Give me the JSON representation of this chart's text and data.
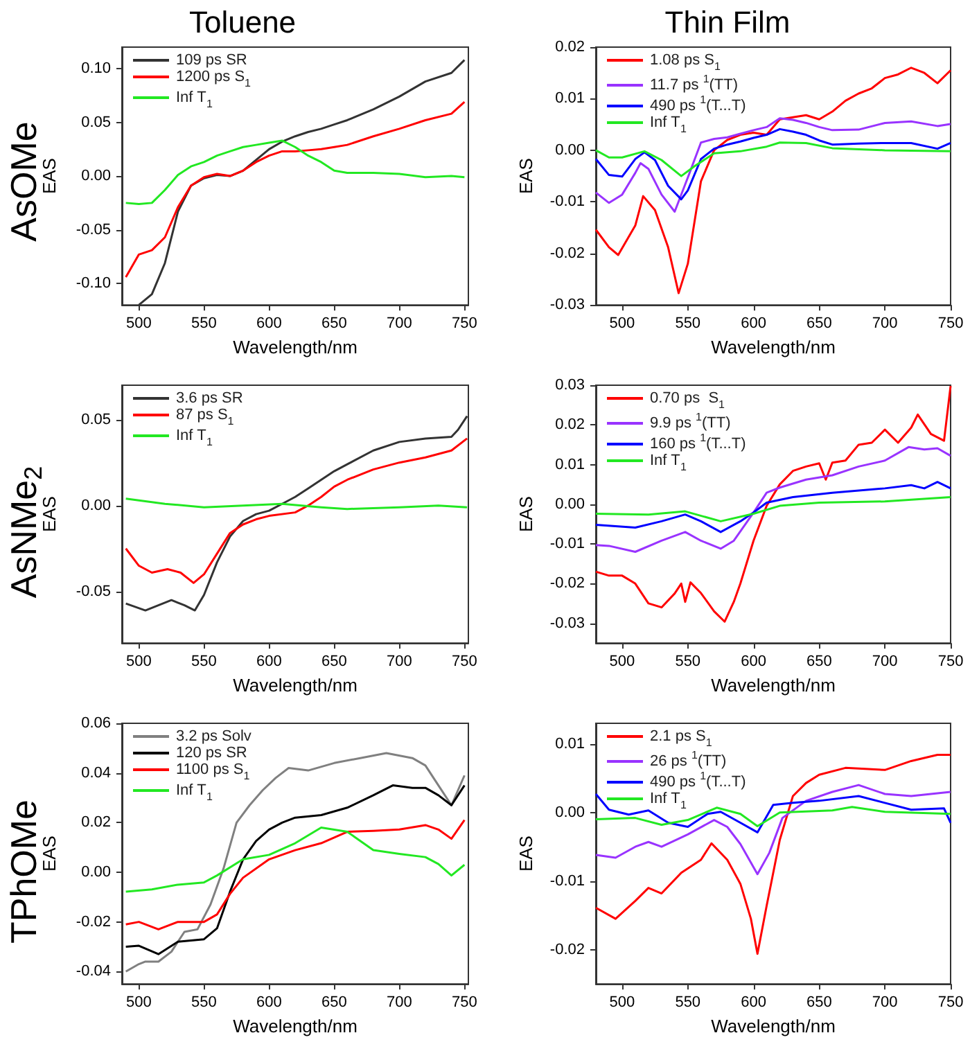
{
  "chart_data": [
    {
      "type": "line",
      "title": "Toluene",
      "annotations": [
        "AsOMe"
      ],
      "xlabel": "Wavelength/nm",
      "ylabel": "EAS",
      "xlim": [
        487,
        753
      ],
      "xticks": [
        500,
        550,
        600,
        650,
        700,
        750
      ],
      "ylim": [
        -0.12,
        0.12
      ],
      "yticks": [
        {
          "value": -0.1,
          "label": "-0.10"
        },
        {
          "value": -0.05,
          "label": "-0.05"
        },
        {
          "value": 0,
          "label": "0.00"
        },
        {
          "value": 0.05,
          "label": "0.05"
        },
        {
          "value": 0.1,
          "label": "0.10"
        }
      ],
      "legend": "top left",
      "grid": false,
      "marker": "none",
      "series": [
        {
          "name": "109 ps SR",
          "color": "#333333",
          "x": [
            500,
            510,
            520,
            530,
            540,
            550,
            560,
            570,
            580,
            590,
            600,
            610,
            620,
            630,
            640,
            650,
            660,
            680,
            700,
            720,
            740,
            750
          ],
          "values": [
            -0.12,
            -0.11,
            -0.081,
            -0.033,
            -0.009,
            -0.002,
            0.001,
            0,
            0.005,
            0.015,
            0.025,
            0.032,
            0.037,
            0.041,
            0.044,
            0.048,
            0.052,
            0.062,
            0.074,
            0.088,
            0.096,
            0.108
          ]
        },
        {
          "name": "1200 ps S$_{1}$",
          "color": "#ff0000",
          "x": [
            490,
            500,
            510,
            520,
            530,
            540,
            550,
            560,
            570,
            580,
            590,
            600,
            610,
            620,
            630,
            640,
            650,
            660,
            680,
            700,
            720,
            740,
            750
          ],
          "values": [
            -0.094,
            -0.073,
            -0.069,
            -0.057,
            -0.029,
            -0.009,
            -0.001,
            0.002,
            0,
            0.005,
            0.013,
            0.019,
            0.023,
            0.023,
            0.024,
            0.025,
            0.027,
            0.029,
            0.037,
            0.044,
            0.052,
            0.058,
            0.069
          ]
        },
        {
          "name": "Inf T$_{1}$",
          "color": "#22e822",
          "x": [
            490,
            500,
            510,
            520,
            530,
            540,
            550,
            560,
            570,
            580,
            590,
            600,
            610,
            620,
            630,
            640,
            650,
            660,
            680,
            700,
            720,
            740,
            750
          ],
          "values": [
            -0.025,
            -0.026,
            -0.025,
            -0.013,
            0.001,
            0.009,
            0.013,
            0.019,
            0.023,
            0.027,
            0.029,
            0.031,
            0.033,
            0.027,
            0.019,
            0.013,
            0.005,
            0.003,
            0.003,
            0.002,
            -0.001,
            0,
            -0.001
          ]
        }
      ]
    },
    {
      "type": "line",
      "title": "Thin Film",
      "xlabel": "Wavelength/nm",
      "ylabel": "EAS",
      "xlim": [
        480,
        750
      ],
      "xticks": [
        500,
        550,
        600,
        650,
        700,
        750
      ],
      "ylim": [
        -0.03,
        0.02
      ],
      "yticks": [
        {
          "value": -0.03,
          "label": "-0.03"
        },
        {
          "value": -0.02,
          "label": "-0.02"
        },
        {
          "value": -0.01,
          "label": "-0.01"
        },
        {
          "value": 0,
          "label": "0.00"
        },
        {
          "value": 0.01,
          "label": "0.01"
        },
        {
          "value": 0.02,
          "label": "0.02"
        }
      ],
      "legend": "top left",
      "grid": false,
      "marker": "none",
      "series": [
        {
          "name": "1.08 ps S$_{1}$",
          "color": "#ff0000",
          "x": [
            480,
            490,
            497,
            510,
            516,
            525,
            535,
            543,
            550,
            560,
            570,
            580,
            590,
            600,
            610,
            620,
            630,
            640,
            650,
            660,
            670,
            680,
            690,
            700,
            710,
            720,
            730,
            740,
            750
          ],
          "values": [
            -0.0154,
            -0.0188,
            -0.0203,
            -0.0146,
            -0.0089,
            -0.0116,
            -0.0188,
            -0.0277,
            -0.022,
            -0.006,
            0,
            0.002,
            0.003,
            0.0034,
            0.003,
            0.006,
            0.0064,
            0.0068,
            0.006,
            0.0075,
            0.0096,
            0.011,
            0.012,
            0.014,
            0.0147,
            0.016,
            0.015,
            0.013,
            0.0155
          ]
        },
        {
          "name": "11.7 ps $^{1}$(TT)",
          "color": "#9933ff",
          "x": [
            480,
            490,
            500,
            510,
            514,
            520,
            530,
            540,
            550,
            560,
            570,
            580,
            590,
            600,
            610,
            620,
            630,
            640,
            650,
            660,
            680,
            700,
            720,
            740,
            750
          ],
          "values": [
            -0.0082,
            -0.0102,
            -0.0086,
            -0.0044,
            -0.0025,
            -0.0036,
            -0.0086,
            -0.0119,
            -0.0053,
            0.0015,
            0.0022,
            0.0025,
            0.0032,
            0.0039,
            0.0045,
            0.0062,
            0.0059,
            0.0053,
            0.0045,
            0.0039,
            0.004,
            0.0053,
            0.0056,
            0.0047,
            0.0051
          ]
        },
        {
          "name": "490 ps $^{1}$(T...T)",
          "color": "#0000ff",
          "x": [
            480,
            490,
            500,
            510,
            517,
            525,
            535,
            545,
            550,
            560,
            570,
            580,
            590,
            600,
            610,
            620,
            630,
            640,
            650,
            660,
            680,
            700,
            720,
            740,
            750
          ],
          "values": [
            -0.0017,
            -0.0048,
            -0.0051,
            -0.0017,
            -0.0004,
            -0.0019,
            -0.0069,
            -0.0095,
            -0.0078,
            -0.0017,
            0.0003,
            0.0011,
            0.0017,
            0.0024,
            0.003,
            0.0041,
            0.0036,
            0.003,
            0.0019,
            0.0011,
            0.0013,
            0.0014,
            0.0014,
            0.0003,
            0.0014
          ]
        },
        {
          "name": "Inf T$_{1}$",
          "color": "#22e822",
          "x": [
            480,
            490,
            500,
            517,
            530,
            545,
            555,
            570,
            590,
            610,
            620,
            640,
            660,
            700,
            750
          ],
          "values": [
            0,
            -0.0014,
            -0.0014,
            -0.0002,
            -0.0019,
            -0.005,
            -0.0031,
            -0.0006,
            -0.0002,
            0.0007,
            0.0015,
            0.0014,
            0.0004,
            0,
            -0.0002
          ]
        }
      ]
    },
    {
      "type": "line",
      "annotations": [
        "AsNMe$_{2}$"
      ],
      "xlabel": "Wavelength/nm",
      "ylabel": "EAS",
      "xlim": [
        487,
        753
      ],
      "xticks": [
        500,
        550,
        600,
        650,
        700,
        750
      ],
      "ylim": [
        -0.08,
        0.07
      ],
      "yticks": [
        {
          "value": -0.05,
          "label": "-0.05"
        },
        {
          "value": 0,
          "label": "0.00"
        },
        {
          "value": 0.05,
          "label": "0.05"
        }
      ],
      "legend": "top left",
      "grid": false,
      "marker": "none",
      "series": [
        {
          "name": "3.6 ps SR",
          "color": "#333333",
          "x": [
            490,
            505,
            515,
            525,
            535,
            543,
            550,
            560,
            570,
            580,
            590,
            600,
            610,
            620,
            630,
            640,
            650,
            660,
            680,
            700,
            720,
            740,
            745,
            752
          ],
          "values": [
            -0.057,
            -0.061,
            -0.058,
            -0.055,
            -0.058,
            -0.061,
            -0.052,
            -0.033,
            -0.018,
            -0.009,
            -0.005,
            -0.003,
            0.001,
            0.005,
            0.01,
            0.015,
            0.02,
            0.024,
            0.032,
            0.037,
            0.039,
            0.04,
            0.044,
            0.052
          ]
        },
        {
          "name": "87 ps S$_{1}$",
          "color": "#ff0000",
          "x": [
            490,
            500,
            510,
            522,
            532,
            542,
            550,
            560,
            570,
            580,
            590,
            600,
            620,
            630,
            640,
            650,
            660,
            680,
            700,
            720,
            740,
            752
          ],
          "values": [
            -0.025,
            -0.035,
            -0.039,
            -0.037,
            -0.039,
            -0.045,
            -0.04,
            -0.028,
            -0.016,
            -0.011,
            -0.008,
            -0.006,
            -0.004,
            0,
            0.005,
            0.011,
            0.015,
            0.021,
            0.025,
            0.028,
            0.032,
            0.039
          ]
        },
        {
          "name": "Inf T$_{1}$",
          "color": "#22e822",
          "x": [
            490,
            500,
            520,
            550,
            580,
            610,
            640,
            660,
            700,
            730,
            752
          ],
          "values": [
            0.004,
            0.003,
            0.001,
            -0.001,
            0,
            0.001,
            -0.001,
            -0.002,
            -0.001,
            0,
            -0.001
          ]
        }
      ]
    },
    {
      "type": "line",
      "xlabel": "Wavelength/nm",
      "ylabel": "EAS",
      "xlim": [
        480,
        750
      ],
      "xticks": [
        500,
        550,
        600,
        650,
        700,
        750
      ],
      "ylim": [
        -0.035,
        0.03
      ],
      "yticks": [
        {
          "value": -0.03,
          "label": "-0.03"
        },
        {
          "value": -0.02,
          "label": "-0.02"
        },
        {
          "value": -0.01,
          "label": "-0.01"
        },
        {
          "value": 0,
          "label": "0.00"
        },
        {
          "value": 0.01,
          "label": "0.01"
        },
        {
          "value": 0.02,
          "label": "0.02"
        },
        {
          "value": 0.03,
          "label": "0.03"
        }
      ],
      "legend": "top left",
      "grid": false,
      "marker": "none",
      "series": [
        {
          "name": "0.70 ps  S$_{1}$",
          "color": "#ff0000",
          "x": [
            480,
            490,
            500,
            510,
            520,
            530,
            540,
            545,
            548,
            552,
            560,
            570,
            578,
            585,
            590,
            600,
            610,
            620,
            630,
            640,
            650,
            655,
            660,
            670,
            680,
            690,
            700,
            710,
            720,
            725,
            735,
            745,
            750
          ],
          "values": [
            -0.017,
            -0.018,
            -0.018,
            -0.02,
            -0.025,
            -0.026,
            -0.0225,
            -0.02,
            -0.0246,
            -0.0197,
            -0.0224,
            -0.027,
            -0.0296,
            -0.0246,
            -0.02,
            -0.0092,
            -0.0004,
            0.005,
            0.0084,
            0.0095,
            0.0103,
            0.0062,
            0.0105,
            0.011,
            0.015,
            0.0155,
            0.0188,
            0.0155,
            0.0193,
            0.0226,
            0.0177,
            0.016,
            0.0298
          ]
        },
        {
          "name": "9.9 ps $^{1}$(TT)",
          "color": "#9933ff",
          "x": [
            480,
            490,
            510,
            530,
            548,
            560,
            575,
            585,
            600,
            610,
            620,
            640,
            660,
            680,
            700,
            718,
            730,
            740,
            750
          ],
          "values": [
            -0.0103,
            -0.0105,
            -0.012,
            -0.0092,
            -0.007,
            -0.0092,
            -0.0112,
            -0.0092,
            -0.0021,
            0.0029,
            0.0042,
            0.0062,
            0.0073,
            0.0095,
            0.011,
            0.0144,
            0.0138,
            0.0141,
            0.0122
          ]
        },
        {
          "name": "160 ps $^{1}$(T...T)",
          "color": "#0000ff",
          "x": [
            480,
            510,
            530,
            548,
            560,
            575,
            590,
            600,
            610,
            630,
            660,
            700,
            720,
            730,
            740,
            750
          ],
          "values": [
            -0.0052,
            -0.0059,
            -0.0043,
            -0.0026,
            -0.0043,
            -0.007,
            -0.0043,
            -0.0021,
            0.0004,
            0.0018,
            0.0029,
            0.004,
            0.0048,
            0.004,
            0.0056,
            0.004
          ]
        },
        {
          "name": "Inf T$_{1}$",
          "color": "#22e822",
          "x": [
            480,
            520,
            548,
            575,
            600,
            620,
            650,
            700,
            750
          ],
          "values": [
            -0.0024,
            -0.0026,
            -0.0018,
            -0.0043,
            -0.0024,
            -0.0004,
            0.0004,
            0.0007,
            0.0018
          ]
        }
      ]
    },
    {
      "type": "line",
      "annotations": [
        "TPhOMe"
      ],
      "xlabel": "Wavelength/nm",
      "ylabel": "EAS",
      "xlim": [
        487,
        753
      ],
      "xticks": [
        500,
        550,
        600,
        650,
        700,
        750
      ],
      "ylim": [
        -0.045,
        0.06
      ],
      "yticks": [
        {
          "value": -0.04,
          "label": "-0.04"
        },
        {
          "value": -0.02,
          "label": "-0.02"
        },
        {
          "value": 0,
          "label": "0.00"
        },
        {
          "value": 0.02,
          "label": "0.02"
        },
        {
          "value": 0.04,
          "label": "0.04"
        },
        {
          "value": 0.06,
          "label": "0.06"
        }
      ],
      "legend": "top left",
      "grid": false,
      "marker": "none",
      "series": [
        {
          "name": "3.2 ps Solv",
          "color": "#808080",
          "x": [
            490,
            500,
            505,
            515,
            525,
            535,
            545,
            555,
            565,
            575,
            585,
            595,
            605,
            615,
            630,
            650,
            670,
            690,
            710,
            720,
            730,
            740,
            750
          ],
          "values": [
            -0.04,
            -0.037,
            -0.036,
            -0.036,
            -0.032,
            -0.024,
            -0.023,
            -0.013,
            0.0015,
            0.02,
            0.027,
            0.033,
            0.038,
            0.042,
            0.041,
            0.044,
            0.046,
            0.048,
            0.046,
            0.043,
            0.035,
            0.027,
            0.039
          ]
        },
        {
          "name": "120 ps SR",
          "color": "#000000",
          "x": [
            490,
            500,
            515,
            530,
            550,
            560,
            570,
            580,
            590,
            600,
            610,
            620,
            640,
            660,
            680,
            695,
            710,
            720,
            730,
            740,
            750
          ],
          "values": [
            -0.03,
            -0.0296,
            -0.033,
            -0.028,
            -0.027,
            -0.0226,
            -0.0078,
            0.0052,
            0.0126,
            0.0172,
            0.02,
            0.022,
            0.023,
            0.026,
            0.031,
            0.035,
            0.034,
            0.034,
            0.031,
            0.027,
            0.035
          ]
        },
        {
          "name": "1100 ps S$_{1}$",
          "color": "#ff0000",
          "x": [
            490,
            500,
            515,
            530,
            550,
            560,
            570,
            580,
            600,
            620,
            640,
            660,
            680,
            700,
            720,
            730,
            740,
            750
          ],
          "values": [
            -0.021,
            -0.02,
            -0.023,
            -0.02,
            -0.02,
            -0.017,
            -0.0087,
            -0.0022,
            0.0052,
            0.0089,
            0.0117,
            0.0163,
            0.0167,
            0.0172,
            0.019,
            0.0172,
            0.0135,
            0.021
          ]
        },
        {
          "name": "Inf T$_{1}$",
          "color": "#22e822",
          "x": [
            490,
            510,
            530,
            550,
            560,
            580,
            600,
            620,
            640,
            660,
            680,
            700,
            720,
            730,
            740,
            750
          ],
          "values": [
            -0.0078,
            -0.0069,
            -0.005,
            -0.0041,
            -0.0013,
            0.0052,
            0.007,
            0.0117,
            0.018,
            0.0163,
            0.0089,
            0.0074,
            0.0061,
            0.0033,
            -0.0013,
            0.003
          ]
        }
      ]
    },
    {
      "type": "line",
      "xlabel": "Wavelength/nm",
      "ylabel": "EAS",
      "xlim": [
        480,
        750
      ],
      "xticks": [
        500,
        550,
        600,
        650,
        700,
        750
      ],
      "ylim": [
        -0.025,
        0.013
      ],
      "yticks": [
        {
          "value": -0.02,
          "label": "-0.02"
        },
        {
          "value": -0.01,
          "label": "-0.01"
        },
        {
          "value": 0,
          "label": "0.00"
        },
        {
          "value": 0.01,
          "label": "0.01"
        }
      ],
      "legend": "top left",
      "grid": false,
      "marker": "none",
      "series": [
        {
          "name": "2.1 ps S$_{1}$",
          "color": "#ff0000",
          "x": [
            480,
            495,
            510,
            520,
            530,
            545,
            560,
            568,
            580,
            590,
            598,
            603,
            610,
            620,
            630,
            640,
            650,
            670,
            700,
            720,
            740,
            750
          ],
          "values": [
            -0.0139,
            -0.0155,
            -0.0129,
            -0.011,
            -0.0118,
            -0.0088,
            -0.0069,
            -0.0045,
            -0.0069,
            -0.0104,
            -0.0155,
            -0.0206,
            -0.0136,
            -0.004,
            0.0024,
            0.0043,
            0.0055,
            0.0065,
            0.0062,
            0.0075,
            0.0084,
            0.0084
          ]
        },
        {
          "name": "26 ps $^{1}$(TT)",
          "color": "#9933ff",
          "x": [
            480,
            495,
            510,
            520,
            530,
            550,
            570,
            580,
            590,
            603,
            612,
            622,
            640,
            660,
            680,
            700,
            720,
            750
          ],
          "values": [
            -0.0062,
            -0.0066,
            -0.005,
            -0.0043,
            -0.005,
            -0.0032,
            -0.0011,
            -0.0021,
            -0.0046,
            -0.009,
            -0.0059,
            -0.0008,
            0.0017,
            0.003,
            0.004,
            0.0027,
            0.0024,
            0.003
          ]
        },
        {
          "name": "490 ps $^{1}$(T...T)",
          "color": "#0000ff",
          "x": [
            480,
            490,
            505,
            520,
            535,
            550,
            565,
            575,
            590,
            603,
            615,
            630,
            650,
            680,
            700,
            720,
            745,
            750
          ],
          "values": [
            0.0027,
            0.0004,
            -0.0003,
            0.0003,
            -0.0015,
            -0.0021,
            -0.0002,
            0.0001,
            -0.0015,
            -0.0029,
            0.0011,
            0.0014,
            0.0017,
            0.0024,
            0.0014,
            0.0004,
            0.0006,
            -0.0015
          ]
        },
        {
          "name": "Inf T$_{1}$",
          "color": "#22e822",
          "x": [
            480,
            510,
            530,
            550,
            572,
            590,
            603,
            620,
            660,
            675,
            700,
            750
          ],
          "values": [
            -0.001,
            -0.0008,
            -0.0018,
            -0.0011,
            0.0007,
            -0.0002,
            -0.002,
            0,
            0.0003,
            0.0008,
            0.0001,
            -0.0002
          ]
        }
      ]
    }
  ]
}
